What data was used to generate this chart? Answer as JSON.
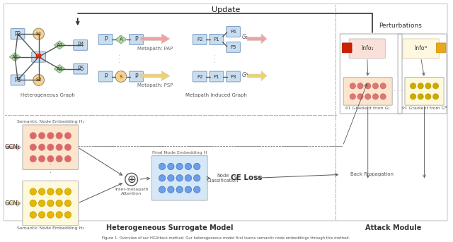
{
  "title": "Update",
  "caption": "Figure 1: Overview of our HGAttack method. Our heterogeneous model first learns semantic node embeddings through this method.",
  "bg_color": "#ffffff",
  "node_blue": "#c9ddf0",
  "node_green": "#b6d7a8",
  "node_yellow_circ": "#f9d08a",
  "node_red_text": "#cc2200",
  "pink_bg": "#fce5cd",
  "pink_circle": "#e06666",
  "yellow_bg": "#fff9db",
  "yellow_circle": "#e6b800",
  "blue_bg": "#d6e8f7",
  "blue_circle": "#6d9eeb",
  "arrow_pink_fill": "#f4a0a0",
  "arrow_yellow_fill": "#f0d070",
  "atk_pink_bg": "#fce5cd",
  "atk_yellow_bg": "#fff9db",
  "info1_red": "#cc2200",
  "info_orange": "#e6a817",
  "section1_label": "Heterogeneous Surrogate Model",
  "section2_label": "Attack Module",
  "hetero_graph_label": "Heterogeneous Graph",
  "sem_emb1_label": "Semantic Node Embedding H₁",
  "sem_emb2_label": "Semantic Node Embedding H₂",
  "metapath_pap": "Metapath: PAP",
  "metapath_psp": "Metapath: PSP",
  "metapath_graph_label": "Metapath induced Graph",
  "gcn1_label": "GCN₁",
  "gcn2_label": "GCN₂",
  "attention_label": "Inter-metapath\nAttention",
  "final_embed_label": "Final Node Embedding H",
  "node_class_label": "Node\nClassification",
  "ce_loss_label": "CE Loss",
  "perturbations_label": "Perturbations",
  "back_prop_label": "Back Propagation",
  "g1_label": "G₁",
  "gp_label": "Gᴺ",
  "p1_grad_g1": "P1 Gradient from G₁",
  "p1_grad_gp": "P1 Gradient from Gᴺ",
  "info1_label": "Info₁",
  "infop_label": "Infoᴺ"
}
